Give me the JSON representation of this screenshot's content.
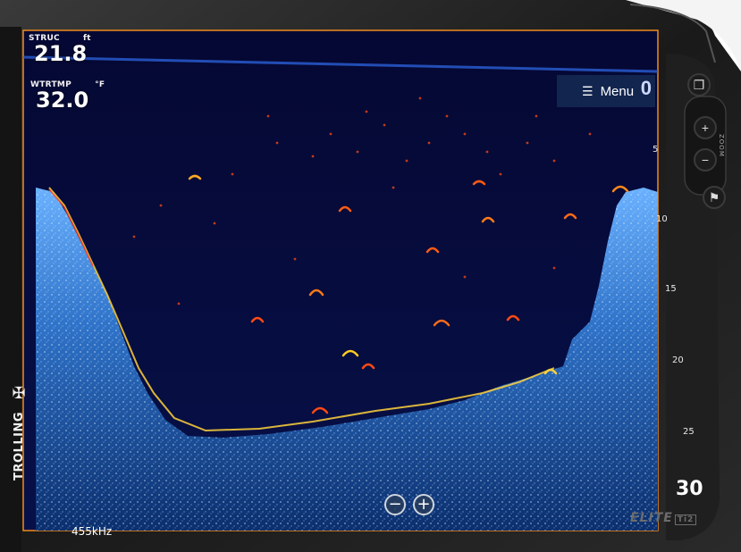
{
  "readouts": {
    "structure_depth": {
      "label": "STRUC",
      "unit": "ft",
      "value": "21.8"
    },
    "water_temp": {
      "label": "WTRTMP",
      "unit": "°F",
      "value": "32.0"
    }
  },
  "menu": {
    "label": "Menu",
    "icon": "hamburger-icon"
  },
  "depth_scale": {
    "ticks": [
      "5",
      "10",
      "15",
      "20",
      "25"
    ],
    "range": "30",
    "top_value": "0"
  },
  "zoom": {
    "minus": "−",
    "plus": "+"
  },
  "frequency": "455kHz",
  "mode": {
    "label": "TROLLING",
    "icon": "fan-icon"
  },
  "hardware": {
    "zoom_label": "ZOOM",
    "buttons": [
      "pages-icon",
      "zoom-in-icon",
      "zoom-out-icon",
      "waypoint-flag-icon"
    ]
  },
  "brand": {
    "name": "ELITE",
    "model": "Ti2"
  },
  "colors": {
    "water": "#050a3c",
    "bottom": "#3a7fd8",
    "frame_border": "#f08a1c",
    "fish_arch": "#ff5a14",
    "bezel": "#1b1b1b"
  }
}
